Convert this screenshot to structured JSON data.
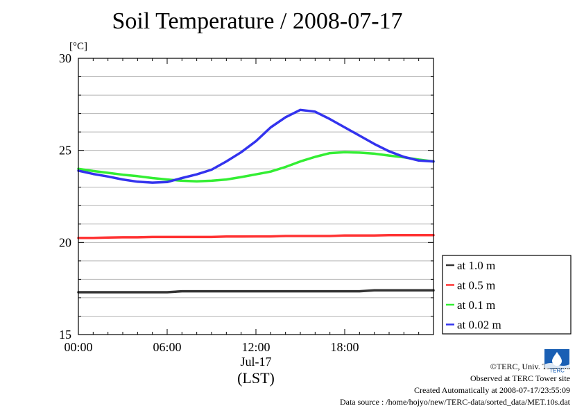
{
  "title": "Soil Temperature / 2008-07-17",
  "unit_label": "[°C]",
  "x_axis": {
    "ticks": [
      "00:00",
      "06:00",
      "12:00",
      "18:00"
    ],
    "date_label": "Jul-17",
    "tz_label": "(LST)"
  },
  "footer": {
    "copyright": "©TERC, Univ. Tsukuba",
    "observed": "Observed at TERC Tower site",
    "created": "Created Automatically at 2008-07-17/23:55:09",
    "source": "Data source : /home/hojyo/new/TERC-data/sorted_data/MET.10s.dat"
  },
  "logo": {
    "text": "TERC",
    "color": "#1a5fb4"
  },
  "chart_data": {
    "type": "line",
    "title": "Soil Temperature / 2008-07-17",
    "ylabel": "[°C]",
    "xlabel": "(LST)",
    "x_unit": "hours",
    "xlim": [
      0,
      24
    ],
    "ylim": [
      15,
      30
    ],
    "y_major_ticks": [
      15,
      20,
      25,
      30
    ],
    "y_minor_step": 1,
    "x_minor_step": 1,
    "grid": "horizontal",
    "legend_position": "right-bottom",
    "x": [
      0,
      1,
      2,
      3,
      4,
      5,
      6,
      7,
      8,
      9,
      10,
      11,
      12,
      13,
      14,
      15,
      16,
      17,
      18,
      19,
      20,
      21,
      22,
      23,
      24
    ],
    "series": [
      {
        "name": "at 1.0 m",
        "color": "#333333",
        "values": [
          17.3,
          17.3,
          17.3,
          17.3,
          17.3,
          17.3,
          17.3,
          17.35,
          17.35,
          17.35,
          17.35,
          17.35,
          17.35,
          17.35,
          17.35,
          17.35,
          17.35,
          17.35,
          17.35,
          17.35,
          17.4,
          17.4,
          17.4,
          17.4,
          17.4
        ]
      },
      {
        "name": "at 0.5 m",
        "color": "#ff3333",
        "values": [
          20.25,
          20.25,
          20.27,
          20.28,
          20.28,
          20.3,
          20.3,
          20.3,
          20.3,
          20.3,
          20.32,
          20.32,
          20.33,
          20.33,
          20.35,
          20.35,
          20.35,
          20.35,
          20.38,
          20.38,
          20.38,
          20.4,
          20.4,
          20.4,
          20.4
        ]
      },
      {
        "name": "at 0.1 m",
        "color": "#33ee33",
        "values": [
          24.0,
          23.88,
          23.78,
          23.68,
          23.6,
          23.5,
          23.42,
          23.35,
          23.32,
          23.35,
          23.42,
          23.55,
          23.7,
          23.85,
          24.1,
          24.4,
          24.65,
          24.85,
          24.9,
          24.88,
          24.82,
          24.72,
          24.62,
          24.5,
          24.4
        ]
      },
      {
        "name": "at 0.02 m",
        "color": "#3333ee",
        "values": [
          23.9,
          23.72,
          23.58,
          23.42,
          23.3,
          23.25,
          23.28,
          23.5,
          23.7,
          23.95,
          24.4,
          24.9,
          25.5,
          26.25,
          26.8,
          27.2,
          27.1,
          26.7,
          26.25,
          25.8,
          25.35,
          24.95,
          24.65,
          24.45,
          24.4
        ]
      }
    ]
  }
}
